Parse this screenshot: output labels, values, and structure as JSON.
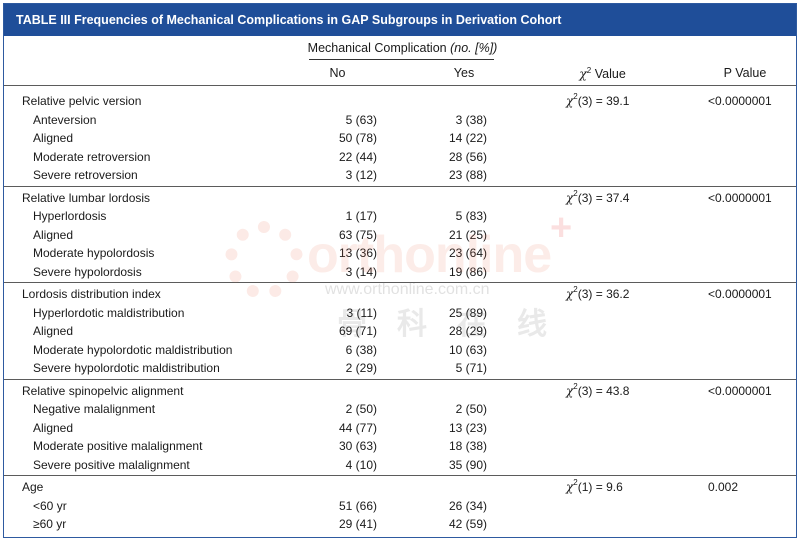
{
  "table": {
    "title": "TABLE III Frequencies of Mechanical Complications in GAP Subgroups in Derivation Cohort",
    "header": {
      "group_label": "Mechanical Complication",
      "group_unit": "(no. [%])",
      "no": "No",
      "yes": "Yes",
      "chi_symbol": "χ",
      "chi_exp": "2",
      "chi_word": " Value",
      "p": "P Value"
    },
    "groups": [
      {
        "label": "Relative pelvic version",
        "chi": {
          "sym": "χ",
          "exp": "2",
          "text": "(3) = 39.1"
        },
        "p": "<0.0000001",
        "rows": [
          {
            "label": "Anteversion",
            "no": "5 (63)",
            "yes": "3 (38)"
          },
          {
            "label": "Aligned",
            "no": "50 (78)",
            "yes": "14 (22)"
          },
          {
            "label": "Moderate retroversion",
            "no": "22 (44)",
            "yes": "28 (56)"
          },
          {
            "label": "Severe retroversion",
            "no": "3 (12)",
            "yes": "23 (88)"
          }
        ]
      },
      {
        "label": "Relative lumbar lordosis",
        "chi": {
          "sym": "χ",
          "exp": "2",
          "text": "(3) = 37.4"
        },
        "p": "<0.0000001",
        "rows": [
          {
            "label": "Hyperlordosis",
            "no": "1 (17)",
            "yes": "5 (83)"
          },
          {
            "label": "Aligned",
            "no": "63 (75)",
            "yes": "21 (25)"
          },
          {
            "label": "Moderate hypolordosis",
            "no": "13 (36)",
            "yes": "23 (64)"
          },
          {
            "label": "Severe hypolordosis",
            "no": "3 (14)",
            "yes": "19 (86)"
          }
        ]
      },
      {
        "label": "Lordosis distribution index",
        "chi": {
          "sym": "χ",
          "exp": "2",
          "text": "(3) = 36.2"
        },
        "p": "<0.0000001",
        "rows": [
          {
            "label": "Hyperlordotic maldistribution",
            "no": "3 (11)",
            "yes": "25 (89)"
          },
          {
            "label": "Aligned",
            "no": "69 (71)",
            "yes": "28 (29)"
          },
          {
            "label": "Moderate hypolordotic maldistribution",
            "no": "6 (38)",
            "yes": "10 (63)"
          },
          {
            "label": "Severe hypolordotic maldistribution",
            "no": "2 (29)",
            "yes": "5 (71)"
          }
        ]
      },
      {
        "label": "Relative spinopelvic alignment",
        "chi": {
          "sym": "χ",
          "exp": "2",
          "text": "(3) = 43.8"
        },
        "p": "<0.0000001",
        "rows": [
          {
            "label": "Negative malalignment",
            "no": "2 (50)",
            "yes": "2 (50)"
          },
          {
            "label": "Aligned",
            "no": "44 (77)",
            "yes": "13 (23)"
          },
          {
            "label": "Moderate positive malalignment",
            "no": "30 (63)",
            "yes": "18 (38)"
          },
          {
            "label": "Severe positive malalignment",
            "no": "4 (10)",
            "yes": "35 (90)"
          }
        ]
      },
      {
        "label": "Age",
        "chi": {
          "sym": "χ",
          "exp": "2",
          "text": "(1) = 9.6"
        },
        "p": "0.002",
        "rows": [
          {
            "label": "<60 yr",
            "no": "51 (66)",
            "yes": "26 (34)"
          },
          {
            "label": "≥60 yr",
            "no": "29 (41)",
            "yes": "42 (59)"
          }
        ]
      }
    ]
  },
  "watermark": {
    "brand": "orthonline",
    "plus": "+",
    "url": "www.orthonline.com.cn",
    "chinese": "骨科在线"
  }
}
